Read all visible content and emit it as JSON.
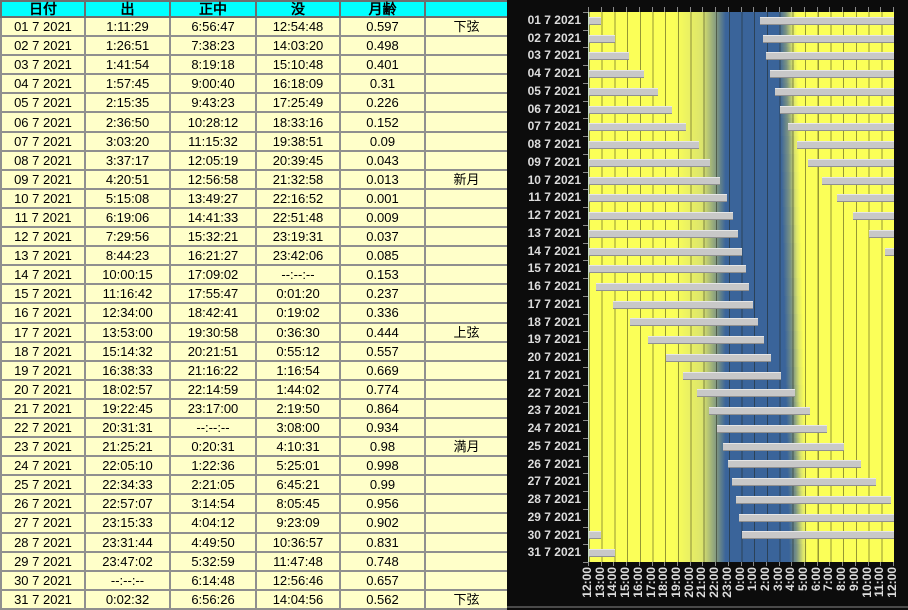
{
  "table": {
    "headers": [
      "日付",
      "出",
      "正中",
      "没",
      "月齢",
      ""
    ],
    "rows": [
      {
        "date": "01 7 2021",
        "rise": "1:11:29",
        "transit": "6:56:47",
        "set": "12:54:48",
        "age": "0.597",
        "phase": "下弦"
      },
      {
        "date": "02 7 2021",
        "rise": "1:26:51",
        "transit": "7:38:23",
        "set": "14:03:20",
        "age": "0.498",
        "phase": ""
      },
      {
        "date": "03 7 2021",
        "rise": "1:41:54",
        "transit": "8:19:18",
        "set": "15:10:48",
        "age": "0.401",
        "phase": ""
      },
      {
        "date": "04 7 2021",
        "rise": "1:57:45",
        "transit": "9:00:40",
        "set": "16:18:09",
        "age": "0.31",
        "phase": ""
      },
      {
        "date": "05 7 2021",
        "rise": "2:15:35",
        "transit": "9:43:23",
        "set": "17:25:49",
        "age": "0.226",
        "phase": ""
      },
      {
        "date": "06 7 2021",
        "rise": "2:36:50",
        "transit": "10:28:12",
        "set": "18:33:16",
        "age": "0.152",
        "phase": ""
      },
      {
        "date": "07 7 2021",
        "rise": "3:03:20",
        "transit": "11:15:32",
        "set": "19:38:51",
        "age": "0.09",
        "phase": ""
      },
      {
        "date": "08 7 2021",
        "rise": "3:37:17",
        "transit": "12:05:19",
        "set": "20:39:45",
        "age": "0.043",
        "phase": ""
      },
      {
        "date": "09 7 2021",
        "rise": "4:20:51",
        "transit": "12:56:58",
        "set": "21:32:58",
        "age": "0.013",
        "phase": "新月"
      },
      {
        "date": "10 7 2021",
        "rise": "5:15:08",
        "transit": "13:49:27",
        "set": "22:16:52",
        "age": "0.001",
        "phase": ""
      },
      {
        "date": "11 7 2021",
        "rise": "6:19:06",
        "transit": "14:41:33",
        "set": "22:51:48",
        "age": "0.009",
        "phase": ""
      },
      {
        "date": "12 7 2021",
        "rise": "7:29:56",
        "transit": "15:32:21",
        "set": "23:19:31",
        "age": "0.037",
        "phase": ""
      },
      {
        "date": "13 7 2021",
        "rise": "8:44:23",
        "transit": "16:21:27",
        "set": "23:42:06",
        "age": "0.085",
        "phase": ""
      },
      {
        "date": "14 7 2021",
        "rise": "10:00:15",
        "transit": "17:09:02",
        "set": "--:--:--",
        "age": "0.153",
        "phase": ""
      },
      {
        "date": "15 7 2021",
        "rise": "11:16:42",
        "transit": "17:55:47",
        "set": "0:01:20",
        "age": "0.237",
        "phase": ""
      },
      {
        "date": "16 7 2021",
        "rise": "12:34:00",
        "transit": "18:42:41",
        "set": "0:19:02",
        "age": "0.336",
        "phase": ""
      },
      {
        "date": "17 7 2021",
        "rise": "13:53:00",
        "transit": "19:30:58",
        "set": "0:36:30",
        "age": "0.444",
        "phase": "上弦"
      },
      {
        "date": "18 7 2021",
        "rise": "15:14:32",
        "transit": "20:21:51",
        "set": "0:55:12",
        "age": "0.557",
        "phase": ""
      },
      {
        "date": "19 7 2021",
        "rise": "16:38:33",
        "transit": "21:16:22",
        "set": "1:16:54",
        "age": "0.669",
        "phase": ""
      },
      {
        "date": "20 7 2021",
        "rise": "18:02:57",
        "transit": "22:14:59",
        "set": "1:44:02",
        "age": "0.774",
        "phase": ""
      },
      {
        "date": "21 7 2021",
        "rise": "19:22:45",
        "transit": "23:17:00",
        "set": "2:19:50",
        "age": "0.864",
        "phase": ""
      },
      {
        "date": "22 7 2021",
        "rise": "20:31:31",
        "transit": "--:--:--",
        "set": "3:08:00",
        "age": "0.934",
        "phase": ""
      },
      {
        "date": "23 7 2021",
        "rise": "21:25:21",
        "transit": "0:20:31",
        "set": "4:10:31",
        "age": "0.98",
        "phase": "満月"
      },
      {
        "date": "24 7 2021",
        "rise": "22:05:10",
        "transit": "1:22:36",
        "set": "5:25:01",
        "age": "0.998",
        "phase": ""
      },
      {
        "date": "25 7 2021",
        "rise": "22:34:33",
        "transit": "2:21:05",
        "set": "6:45:21",
        "age": "0.99",
        "phase": ""
      },
      {
        "date": "26 7 2021",
        "rise": "22:57:07",
        "transit": "3:14:54",
        "set": "8:05:45",
        "age": "0.956",
        "phase": ""
      },
      {
        "date": "27 7 2021",
        "rise": "23:15:33",
        "transit": "4:04:12",
        "set": "9:23:09",
        "age": "0.902",
        "phase": ""
      },
      {
        "date": "28 7 2021",
        "rise": "23:31:44",
        "transit": "4:49:50",
        "set": "10:36:57",
        "age": "0.831",
        "phase": ""
      },
      {
        "date": "29 7 2021",
        "rise": "23:47:02",
        "transit": "5:32:59",
        "set": "11:47:48",
        "age": "0.748",
        "phase": ""
      },
      {
        "date": "30 7 2021",
        "rise": "--:--:--",
        "transit": "6:14:48",
        "set": "12:56:46",
        "age": "0.657",
        "phase": ""
      },
      {
        "date": "31 7 2021",
        "rise": "0:02:32",
        "transit": "6:56:26",
        "set": "14:04:56",
        "age": "0.562",
        "phase": "下弦"
      }
    ]
  },
  "chart_data": {
    "type": "gantt",
    "title": "",
    "description": "Moon above-horizon intervals per day (gray bars) over a noon-to-noon 24h window; yellow = daylight, blue = night",
    "x_ticks": [
      "12:00",
      "13:00",
      "14:00",
      "15:00",
      "16:00",
      "17:00",
      "18:00",
      "19:00",
      "20:00",
      "21:00",
      "22:00",
      "23:00",
      "0:00",
      "1:00",
      "2:00",
      "3:00",
      "4:00",
      "5:00",
      "6:00",
      "7:00",
      "8:00",
      "9:00",
      "10:00",
      "11:00",
      "12:00"
    ],
    "window_hours": 24,
    "rows": [
      {
        "date": "01 7 2021",
        "rise": "1:11:29",
        "set": "12:54:48"
      },
      {
        "date": "02 7 2021",
        "rise": "1:26:51",
        "set": "14:03:20"
      },
      {
        "date": "03 7 2021",
        "rise": "1:41:54",
        "set": "15:10:48"
      },
      {
        "date": "04 7 2021",
        "rise": "1:57:45",
        "set": "16:18:09"
      },
      {
        "date": "05 7 2021",
        "rise": "2:15:35",
        "set": "17:25:49"
      },
      {
        "date": "06 7 2021",
        "rise": "2:36:50",
        "set": "18:33:16"
      },
      {
        "date": "07 7 2021",
        "rise": "3:03:20",
        "set": "19:38:51"
      },
      {
        "date": "08 7 2021",
        "rise": "3:37:17",
        "set": "20:39:45"
      },
      {
        "date": "09 7 2021",
        "rise": "4:20:51",
        "set": "21:32:58"
      },
      {
        "date": "10 7 2021",
        "rise": "5:15:08",
        "set": "22:16:52"
      },
      {
        "date": "11 7 2021",
        "rise": "6:19:06",
        "set": "22:51:48"
      },
      {
        "date": "12 7 2021",
        "rise": "7:29:56",
        "set": "23:19:31"
      },
      {
        "date": "13 7 2021",
        "rise": "8:44:23",
        "set": "23:42:06"
      },
      {
        "date": "14 7 2021",
        "rise": "10:00:15",
        "set": "--:--:--"
      },
      {
        "date": "15 7 2021",
        "rise": "11:16:42",
        "set": "0:01:20"
      },
      {
        "date": "16 7 2021",
        "rise": "12:34:00",
        "set": "0:19:02"
      },
      {
        "date": "17 7 2021",
        "rise": "13:53:00",
        "set": "0:36:30"
      },
      {
        "date": "18 7 2021",
        "rise": "15:14:32",
        "set": "0:55:12"
      },
      {
        "date": "19 7 2021",
        "rise": "16:38:33",
        "set": "1:16:54"
      },
      {
        "date": "20 7 2021",
        "rise": "18:02:57",
        "set": "1:44:02"
      },
      {
        "date": "21 7 2021",
        "rise": "19:22:45",
        "set": "2:19:50"
      },
      {
        "date": "22 7 2021",
        "rise": "20:31:31",
        "set": "3:08:00"
      },
      {
        "date": "23 7 2021",
        "rise": "21:25:21",
        "set": "4:10:31"
      },
      {
        "date": "24 7 2021",
        "rise": "22:05:10",
        "set": "5:25:01"
      },
      {
        "date": "25 7 2021",
        "rise": "22:34:33",
        "set": "6:45:21"
      },
      {
        "date": "26 7 2021",
        "rise": "22:57:07",
        "set": "8:05:45"
      },
      {
        "date": "27 7 2021",
        "rise": "23:15:33",
        "set": "9:23:09"
      },
      {
        "date": "28 7 2021",
        "rise": "23:31:44",
        "set": "10:36:57"
      },
      {
        "date": "29 7 2021",
        "rise": "23:47:02",
        "set": "11:47:48"
      },
      {
        "date": "30 7 2021",
        "rise": "--:--:--",
        "set": "12:56:46"
      },
      {
        "date": "31 7 2021",
        "rise": "0:02:32",
        "set": "14:04:56"
      }
    ],
    "night_band": {
      "dusk_soft_start_h": 6.7,
      "dusk_full_blue_h": 10.75,
      "dawn_full_blue_end_top_h": 14.9,
      "dawn_full_blue_end_bottom_h": 15.75,
      "dawn_transition_len_h": 1.45
    },
    "colors": {
      "day": "#fbff58",
      "night": "#3a649a",
      "twilight_light": "#dbe46c",
      "twilight_mid": "#7b9383",
      "bar": "#c8c8c8",
      "chart_background": "#0c0c0c",
      "grid_line": "rgba(25,25,8,0.45)",
      "axis_label": "#dcdcdc",
      "table_header_bg": "#00ffff",
      "table_cell_bg": "#ffffc9"
    }
  }
}
